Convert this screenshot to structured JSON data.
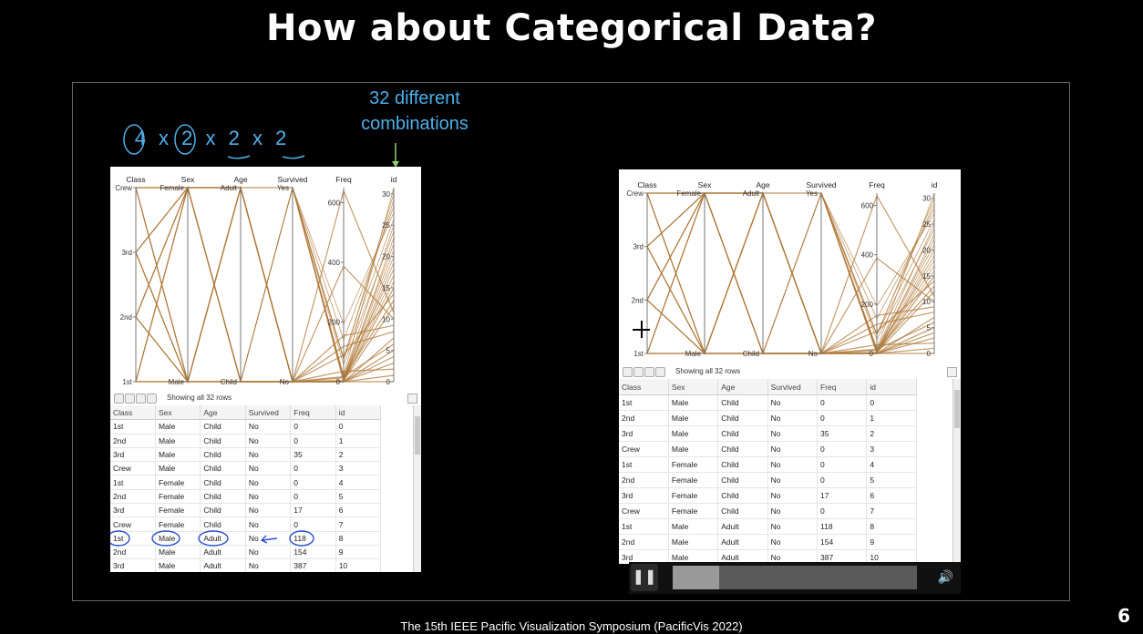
{
  "slide": {
    "title": "How about Categorical Data?",
    "footer": "The 15th IEEE Pacific Visualization Symposium (PacificVis 2022)",
    "page_number": "6"
  },
  "annotations": {
    "combos_line1": "32 different",
    "combos_line2": "combinations",
    "formula": "4 x 2 x 2 x 2"
  },
  "parcoords": {
    "axes": [
      "Class",
      "Sex",
      "Age",
      "Survived",
      "Freq",
      "id"
    ],
    "class_ticks": [
      "Crew",
      "3rd",
      "2nd",
      "1st"
    ],
    "sex_ticks": [
      "Female",
      "Male"
    ],
    "age_ticks": [
      "Adult",
      "Child"
    ],
    "survived_ticks": [
      "Yes",
      "No"
    ],
    "freq_ticks": [
      "600",
      "400",
      "200",
      "0"
    ],
    "id_ticks": [
      "30",
      "25",
      "20",
      "15",
      "10",
      "5",
      "0"
    ],
    "line_color": "#b07a3a"
  },
  "grid": {
    "status": "Showing all 32 rows",
    "columns": [
      "Class",
      "Sex",
      "Age",
      "Survived",
      "Freq",
      "id"
    ],
    "rows": [
      [
        "1st",
        "Male",
        "Child",
        "No",
        "0",
        "0"
      ],
      [
        "2nd",
        "Male",
        "Child",
        "No",
        "0",
        "1"
      ],
      [
        "3rd",
        "Male",
        "Child",
        "No",
        "35",
        "2"
      ],
      [
        "Crew",
        "Male",
        "Child",
        "No",
        "0",
        "3"
      ],
      [
        "1st",
        "Female",
        "Child",
        "No",
        "0",
        "4"
      ],
      [
        "2nd",
        "Female",
        "Child",
        "No",
        "0",
        "5"
      ],
      [
        "3rd",
        "Female",
        "Child",
        "No",
        "17",
        "6"
      ],
      [
        "Crew",
        "Female",
        "Child",
        "No",
        "0",
        "7"
      ],
      [
        "1st",
        "Male",
        "Adult",
        "No",
        "118",
        "8"
      ],
      [
        "2nd",
        "Male",
        "Adult",
        "No",
        "154",
        "9"
      ],
      [
        "3rd",
        "Male",
        "Adult",
        "No",
        "387",
        "10"
      ]
    ]
  },
  "colors": {
    "annotation": "#4db0ea",
    "background": "#000000",
    "lines": "#b07a3a"
  },
  "video_controls": {
    "play_icon": "pause-icon",
    "volume_icon": "volume-icon",
    "progress_fraction": 0.19
  }
}
